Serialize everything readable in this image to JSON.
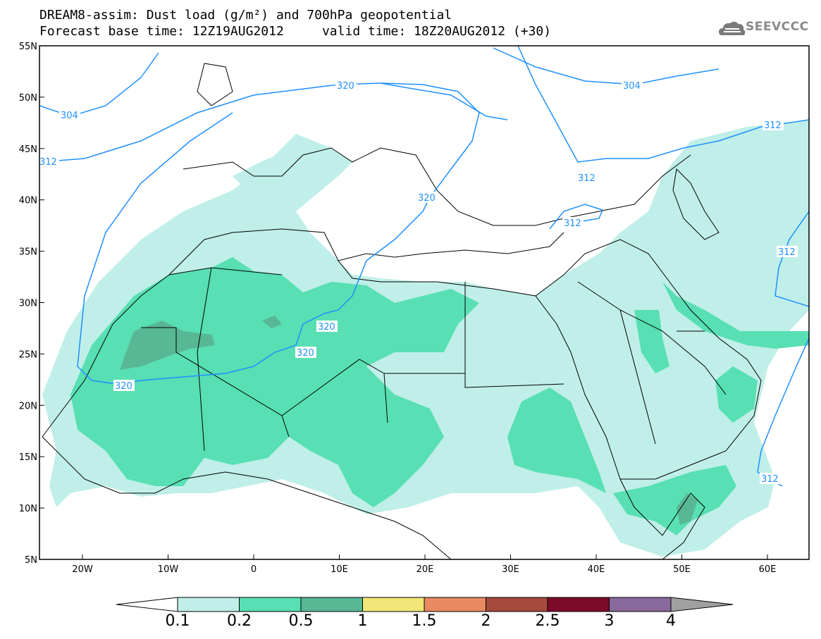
{
  "header": {
    "title_line1": "DREAM8-assim: Dust load (g/m²) and 700hPa geopotential",
    "title_line2": "Forecast base time: 12Z19AUG2012     valid time: 18Z20AUG2012 (+30)",
    "logo": "SEEVCCC"
  },
  "map": {
    "lon_range": [
      -25,
      65
    ],
    "lat_range": [
      5,
      55
    ],
    "lat_ticks": [
      "55N",
      "50N",
      "45N",
      "40N",
      "35N",
      "30N",
      "25N",
      "20N",
      "15N",
      "10N",
      "5N"
    ],
    "lon_ticks": [
      "20W",
      "10W",
      "0",
      "10E",
      "20E",
      "30E",
      "40E",
      "50E",
      "60E"
    ],
    "contour_labels": [
      "304",
      "304",
      "312",
      "312",
      "312",
      "312",
      "312",
      "312",
      "320",
      "320",
      "320",
      "320",
      "320"
    ],
    "colors": {
      "land_border": "#000000",
      "contour": "#1e90ff",
      "dust_01": "#bfefe8",
      "dust_02": "#58dfb3",
      "dust_05": "#58b794"
    }
  },
  "colorbar": {
    "labels": [
      "0.1",
      "0.2",
      "0.5",
      "1",
      "1.5",
      "2",
      "2.5",
      "3",
      "4"
    ],
    "colors": [
      "#bfefe8",
      "#58dfb3",
      "#58b794",
      "#f3e678",
      "#e88a62",
      "#a54a3c",
      "#7d0a2a",
      "#8a6a9c",
      "#a0a0a0"
    ]
  }
}
